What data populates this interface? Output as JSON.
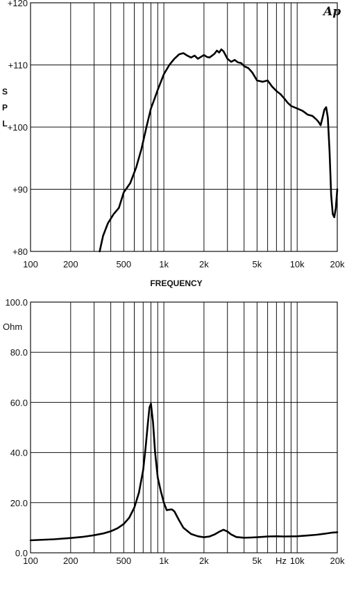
{
  "chart_data": [
    {
      "type": "line",
      "title": "",
      "brand": "Ap",
      "xlabel": "FREQUENCY",
      "ylabel": "SPL",
      "xscale": "log",
      "xlim": [
        100,
        20000
      ],
      "ylim": [
        80,
        120
      ],
      "x_ticks": [
        100,
        200,
        500,
        1000,
        2000,
        5000,
        10000,
        20000
      ],
      "x_tick_labels": [
        "100",
        "200",
        "500",
        "1k",
        "2k",
        "5k",
        "10k",
        "20k"
      ],
      "y_ticks": [
        80,
        90,
        100,
        110,
        120
      ],
      "y_tick_labels": [
        "+80",
        "+90",
        "+100",
        "+110",
        "+120"
      ],
      "grid": true,
      "series": [
        {
          "x": [
            330,
            350,
            380,
            420,
            460,
            500,
            560,
            620,
            680,
            740,
            800,
            850,
            900,
            1000,
            1100,
            1200,
            1300,
            1400,
            1500,
            1600,
            1700,
            1800,
            1900,
            2000,
            2100,
            2200,
            2300,
            2400,
            2500,
            2600,
            2700,
            2800,
            2900,
            3000,
            3200,
            3400,
            3600,
            3800,
            4000,
            4300,
            4600,
            5000,
            5500,
            6000,
            6500,
            7000,
            7500,
            8000,
            8500,
            9000,
            9500,
            10000,
            11000,
            12000,
            13000,
            14000,
            14500,
            15000,
            15500,
            16000,
            16500,
            17000,
            17500,
            18000,
            18500,
            19000,
            19500,
            20000
          ],
          "y": [
            80,
            82.5,
            84.5,
            86,
            87,
            89.5,
            91,
            93.5,
            96.5,
            100,
            103,
            104.5,
            106,
            108.5,
            110,
            111,
            111.7,
            111.9,
            111.5,
            111.2,
            111.5,
            111,
            111.3,
            111.6,
            111.3,
            111.2,
            111.5,
            111.8,
            112.3,
            112,
            112.5,
            112.2,
            111.6,
            111,
            110.5,
            110.8,
            110.4,
            110.3,
            109.8,
            109.5,
            108.8,
            107.5,
            107.3,
            107.5,
            106.5,
            105.8,
            105.3,
            104.6,
            103.9,
            103.4,
            103.2,
            103,
            102.6,
            102,
            101.8,
            101.2,
            100.8,
            100.3,
            101.5,
            102.8,
            103.2,
            101.5,
            96,
            89,
            86,
            85.5,
            87,
            90
          ]
        }
      ]
    },
    {
      "type": "line",
      "title": "",
      "xlabel": "Hz",
      "ylabel": "Ohm",
      "xscale": "log",
      "xlim": [
        100,
        20000
      ],
      "ylim": [
        0,
        100
      ],
      "x_ticks": [
        100,
        200,
        500,
        1000,
        2000,
        5000,
        10000,
        20000
      ],
      "x_tick_labels": [
        "100",
        "200",
        "500",
        "1k",
        "2k",
        "5k",
        "10k",
        "20k"
      ],
      "y_ticks": [
        0,
        20,
        40,
        60,
        80,
        100
      ],
      "y_tick_labels": [
        "0.0",
        "20.0",
        "40.0",
        "60.0",
        "80.0",
        "100.0"
      ],
      "grid": true,
      "series": [
        {
          "x": [
            100,
            150,
            200,
            250,
            300,
            350,
            400,
            450,
            500,
            550,
            600,
            650,
            700,
            730,
            760,
            780,
            800,
            830,
            860,
            900,
            950,
            1000,
            1050,
            1100,
            1150,
            1200,
            1300,
            1400,
            1600,
            1800,
            2000,
            2200,
            2400,
            2600,
            2800,
            3000,
            3200,
            3500,
            4000,
            4500,
            5000,
            6000,
            7000,
            8000,
            10000,
            12000,
            14000,
            16000,
            18000,
            20000
          ],
          "y": [
            5,
            5.4,
            5.9,
            6.4,
            7,
            7.7,
            8.6,
            9.8,
            11.5,
            14,
            18,
            24,
            33,
            42,
            52,
            58,
            59.5,
            52,
            40,
            30,
            24.5,
            20,
            17,
            17.2,
            17.3,
            16.5,
            13,
            10,
            7.5,
            6.6,
            6.2,
            6.5,
            7.3,
            8.4,
            9.2,
            8.5,
            7.3,
            6.3,
            6,
            6.1,
            6.2,
            6.5,
            6.6,
            6.5,
            6.6,
            6.9,
            7.2,
            7.6,
            8,
            8.2
          ]
        }
      ]
    }
  ]
}
